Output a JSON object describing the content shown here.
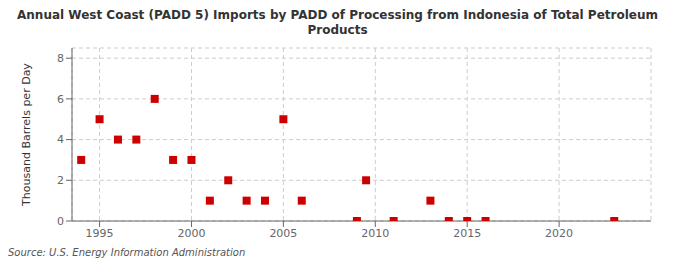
{
  "chart_data": {
    "type": "scatter",
    "title": "Annual West Coast (PADD 5) Imports by PADD of Processing from Indonesia of Total Petroleum\nProducts",
    "ylabel": "Thousand Barrels per Day",
    "annotation": "Source: U.S. Energy Information Administration",
    "color": "#cc0000",
    "marker": "square",
    "grid": true,
    "xlim": [
      1993.5,
      2025
    ],
    "ylim": [
      0,
      8.5
    ],
    "xticks": [
      1995,
      2000,
      2005,
      2010,
      2015,
      2020
    ],
    "yticks": [
      0,
      2,
      4,
      6,
      8
    ],
    "x": [
      1994,
      1995,
      1996,
      1997,
      1998,
      1999,
      2000,
      2001,
      2002,
      2003,
      2004,
      2005,
      2006,
      2009,
      2009.5,
      2011,
      2013,
      2014,
      2015,
      2016,
      2023
    ],
    "values": [
      3,
      5,
      4,
      4,
      6,
      3,
      3,
      1,
      2,
      1,
      1,
      5,
      1,
      0,
      2,
      0,
      1,
      0,
      0,
      0,
      0
    ]
  }
}
